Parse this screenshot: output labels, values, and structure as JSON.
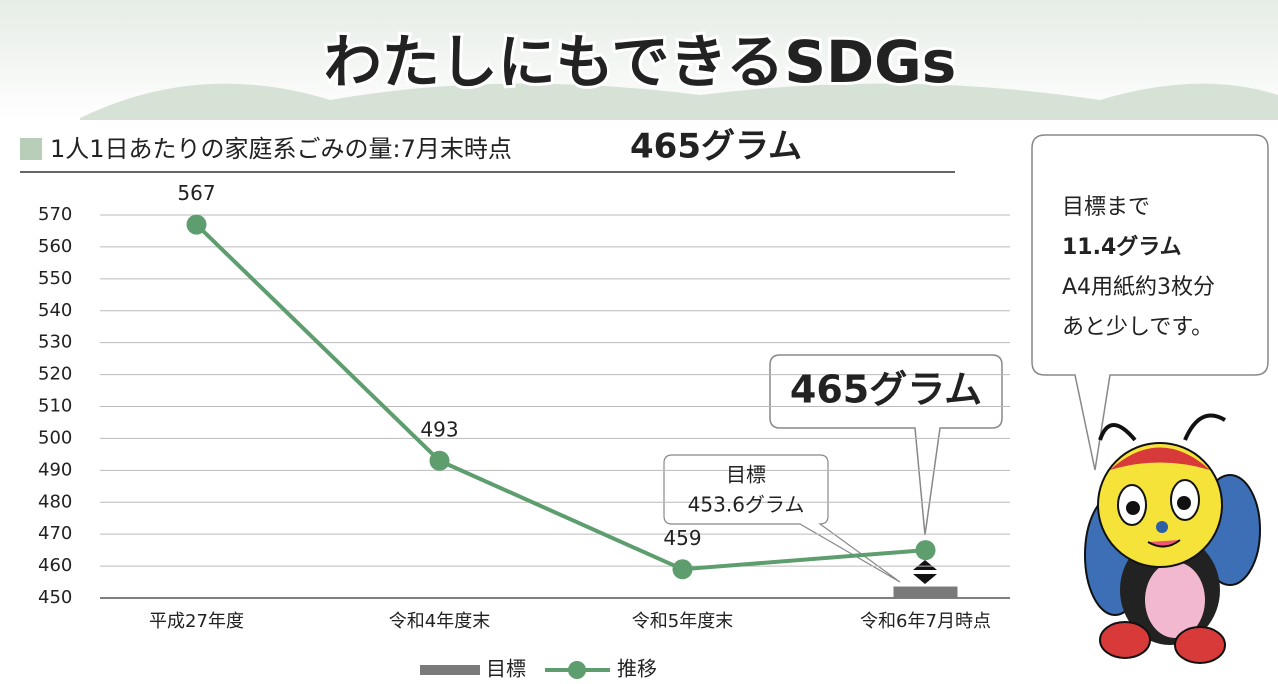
{
  "banner_title": "わたしにもできるSDGs",
  "speech_bubble": [
    "目標まで",
    "11.4グラム",
    "A4用紙約3枚分",
    "あと少しです。"
  ],
  "chart_data": {
    "type": "line",
    "title": "1人1日あたりの家庭系ごみの量:7月末時点",
    "subtitle": "465グラム",
    "categories": [
      "平成27年度",
      "令和4年度末",
      "令和5年度末",
      "令和6年7月時点"
    ],
    "series": [
      {
        "name": "目標",
        "type": "bar",
        "color": "#7a7a7a",
        "values": [
          null,
          null,
          null,
          453.6
        ],
        "value_labels": [
          null,
          null,
          null,
          "453.6グラム"
        ]
      },
      {
        "name": "推移",
        "type": "line",
        "color": "#5e9e6e",
        "values": [
          567,
          493,
          459,
          465
        ],
        "value_labels": [
          "567",
          "493",
          "459",
          "465グラム"
        ]
      }
    ],
    "ylim": [
      450,
      570
    ],
    "yticks": [
      450,
      460,
      470,
      480,
      490,
      500,
      510,
      520,
      530,
      540,
      550,
      560,
      570
    ],
    "grid": true
  }
}
